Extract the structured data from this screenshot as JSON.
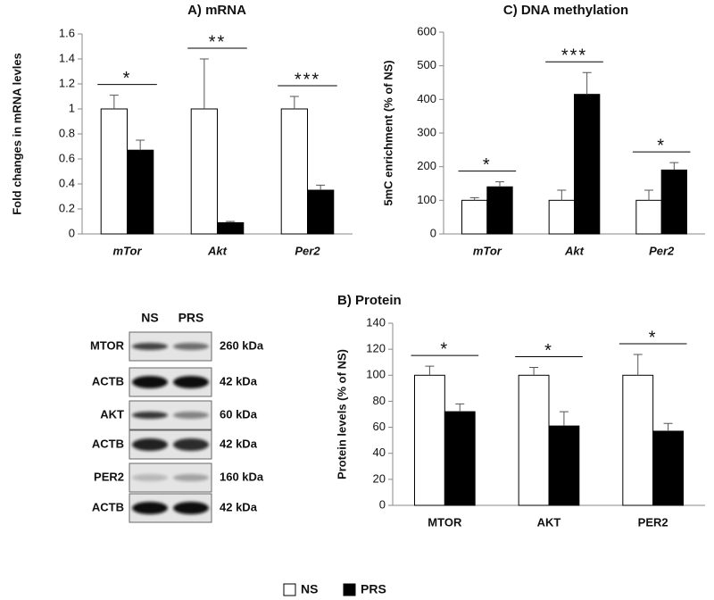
{
  "chart_data": [
    {
      "type": "bar",
      "title": "A) mRNA",
      "y_label": "Fold changes in mRNA levles",
      "categories": [
        "mTor",
        "Akt",
        "Per2"
      ],
      "series": [
        {
          "name": "NS",
          "color": "#ffffff",
          "values": [
            1,
            1,
            1
          ],
          "errors": [
            0.11,
            0.4,
            0.1
          ]
        },
        {
          "name": "PRS",
          "color": "#000000",
          "values": [
            0.67,
            0.09,
            0.35
          ],
          "errors": [
            0.08,
            0.01,
            0.04
          ]
        }
      ],
      "significance": [
        "*",
        "**",
        "***"
      ],
      "ylim": [
        0,
        1.6
      ],
      "yticks": [
        0,
        0.2,
        0.4,
        0.6,
        0.8,
        1,
        1.2,
        1.4,
        1.6
      ]
    },
    {
      "type": "bar",
      "title": "C) DNA methylation",
      "y_label": "5mC enrichment  (% of NS)",
      "categories": [
        "mTor",
        "Akt",
        "Per2"
      ],
      "series": [
        {
          "name": "NS",
          "color": "#ffffff",
          "values": [
            100,
            100,
            100
          ],
          "errors": [
            8,
            30,
            30
          ]
        },
        {
          "name": "PRS",
          "color": "#000000",
          "values": [
            140,
            415,
            190
          ],
          "errors": [
            15,
            65,
            22
          ]
        }
      ],
      "significance": [
        "*",
        "***",
        "*"
      ],
      "ylim": [
        0,
        600
      ],
      "yticks": [
        0,
        100,
        200,
        300,
        400,
        500,
        600
      ]
    },
    {
      "type": "bar",
      "title": "B) Protein",
      "y_label": "Protein levels (% of NS)",
      "categories": [
        "MTOR",
        "AKT",
        "PER2"
      ],
      "series": [
        {
          "name": "NS",
          "color": "#ffffff",
          "values": [
            100,
            100,
            100
          ],
          "errors": [
            7,
            6,
            16
          ]
        },
        {
          "name": "PRS",
          "color": "#000000",
          "values": [
            72,
            61,
            57
          ],
          "errors": [
            6,
            11,
            6
          ]
        }
      ],
      "significance": [
        "*",
        "*",
        "*"
      ],
      "ylim": [
        0,
        140
      ],
      "yticks": [
        0,
        20,
        40,
        60,
        80,
        100,
        120,
        140
      ]
    }
  ],
  "blot": {
    "lanes": [
      "NS",
      "PRS"
    ],
    "rows": [
      {
        "label": "MTOR",
        "size": "260 kDa"
      },
      {
        "label": "ACTB",
        "size": "42 kDa"
      },
      {
        "label": "AKT",
        "size": "60 kDa"
      },
      {
        "label": "ACTB",
        "size": "42 kDa"
      },
      {
        "label": "PER2",
        "size": "160 kDa"
      },
      {
        "label": "ACTB",
        "size": "42 kDa"
      }
    ]
  }
}
